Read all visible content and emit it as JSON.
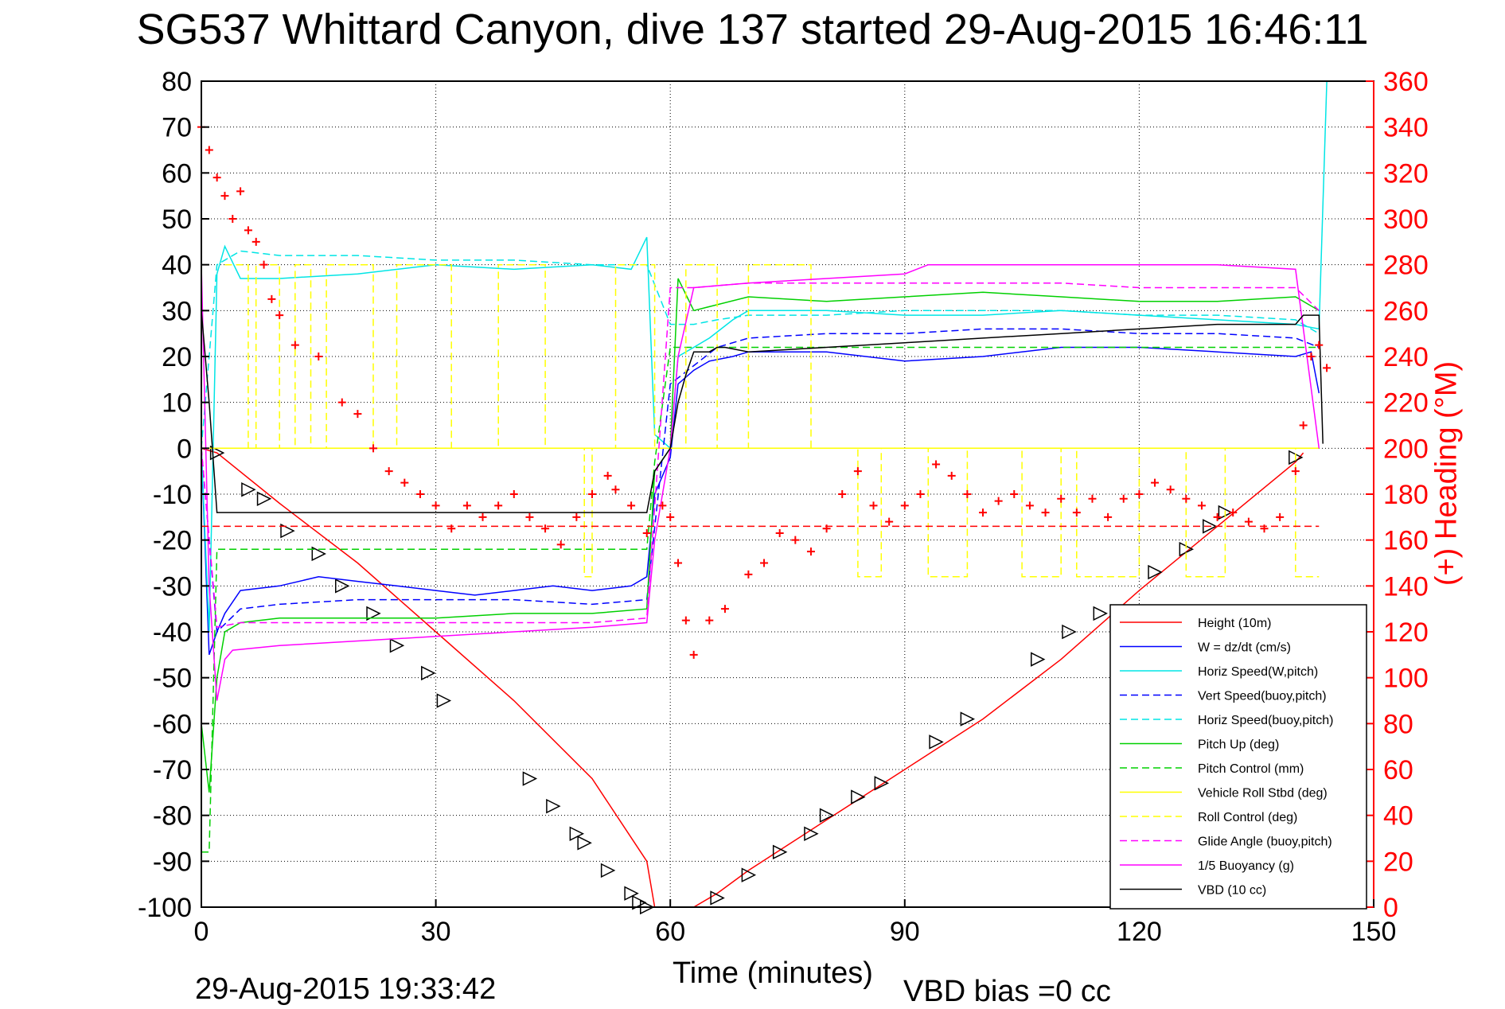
{
  "title": "SG537 Whittard Canyon, dive 137 started 29-Aug-2015 16:46:11",
  "xlabel": "Time (minutes)",
  "footer_timestamp": "29-Aug-2015 19:33:42",
  "vbd_bias": "VBD bias =0 cc",
  "y2label": "(+) Heading (°M)",
  "colors": {
    "height": "#ff0000",
    "w": "#0000ff",
    "horiz": "#00e5e5",
    "pitch": "#00d000",
    "roll": "#ffff00",
    "glide": "#ff00ff",
    "vbd": "#000000",
    "heading": "#ff0000"
  },
  "chart_data": {
    "type": "line",
    "title": "SG537 Whittard Canyon, dive 137 started 29-Aug-2015 16:46:11",
    "xlabel": "Time (minutes)",
    "ylabel": "",
    "y2label": "(+) Heading (°M)",
    "xlim": [
      0,
      150
    ],
    "ylim": [
      -100,
      80
    ],
    "y2lim": [
      0,
      360
    ],
    "xticks": [
      0,
      30,
      60,
      90,
      120,
      150
    ],
    "yticks": [
      -100,
      -90,
      -80,
      -70,
      -60,
      -50,
      -40,
      -30,
      -20,
      -10,
      0,
      10,
      20,
      30,
      40,
      50,
      60,
      70,
      80
    ],
    "y2ticks": [
      0,
      20,
      40,
      60,
      80,
      100,
      120,
      140,
      160,
      180,
      200,
      220,
      240,
      260,
      280,
      300,
      320,
      340,
      360
    ],
    "grid": true,
    "legend_position": "bottom-right",
    "series": [
      {
        "name": "Height (10m)",
        "color": "#ff0000",
        "dash": "solid",
        "x": [
          0,
          2,
          10,
          20,
          30,
          40,
          50,
          57,
          58,
          60,
          63,
          66,
          70,
          80,
          90,
          100,
          110,
          120,
          130,
          140,
          141
        ],
        "y": [
          0,
          -1,
          -12,
          -25,
          -40,
          -55,
          -72,
          -90,
          -100,
          -100,
          -100,
          -97,
          -92,
          -81,
          -70,
          -59,
          -46,
          -31,
          -17,
          -3,
          -1
        ],
        "markers_x": [
          2,
          6,
          8,
          11,
          15,
          18,
          22,
          25,
          29,
          31,
          42,
          45,
          48,
          49,
          52,
          55,
          56,
          57,
          66,
          70,
          74,
          78,
          80,
          84,
          87,
          94,
          98,
          107,
          111,
          115,
          122,
          126,
          129,
          131,
          140
        ],
        "markers_y": [
          -1,
          -9,
          -11,
          -18,
          -23,
          -30,
          -36,
          -43,
          -49,
          -55,
          -72,
          -78,
          -84,
          -86,
          -92,
          -97,
          -99,
          -100,
          -98,
          -93,
          -88,
          -84,
          -80,
          -76,
          -73,
          -64,
          -59,
          -46,
          -40,
          -36,
          -27,
          -22,
          -17,
          -14,
          -2
        ]
      },
      {
        "name": "W = dz/dt (cm/s)",
        "color": "#0000ff",
        "dash": "solid",
        "x": [
          0,
          1,
          2,
          3,
          5,
          10,
          15,
          20,
          25,
          30,
          35,
          40,
          45,
          50,
          55,
          57,
          58,
          60,
          61,
          63,
          65,
          68,
          70,
          80,
          90,
          100,
          110,
          120,
          130,
          140,
          142,
          143
        ],
        "y": [
          0,
          -45,
          -40,
          -36,
          -31,
          -30,
          -28,
          -29,
          -30,
          -31,
          -32,
          -31,
          -30,
          -31,
          -30,
          -28,
          -10,
          -2,
          14,
          17,
          19,
          20,
          21,
          21,
          19,
          20,
          22,
          22,
          21,
          20,
          21,
          12
        ]
      },
      {
        "name": "Horiz Speed(W,pitch)",
        "color": "#00e5e5",
        "dash": "solid",
        "x": [
          0,
          1,
          2,
          3,
          5,
          10,
          20,
          30,
          40,
          50,
          55,
          57,
          58,
          60,
          61,
          63,
          65,
          68,
          70,
          80,
          90,
          100,
          110,
          120,
          130,
          140,
          143,
          144
        ],
        "y": [
          0,
          -40,
          38,
          44,
          37,
          37,
          38,
          40,
          39,
          40,
          39,
          46,
          3,
          0,
          20,
          22,
          24,
          28,
          30,
          30,
          29,
          29,
          30,
          29,
          28,
          27,
          26,
          80
        ]
      },
      {
        "name": "Vert Speed(buoy,pitch)",
        "color": "#0000ff",
        "dash": "dashed",
        "x": [
          0,
          2,
          5,
          10,
          20,
          30,
          40,
          50,
          57,
          60,
          63,
          66,
          70,
          80,
          90,
          100,
          110,
          120,
          130,
          140,
          143
        ],
        "y": [
          0,
          -40,
          -35,
          -34,
          -33,
          -33,
          -33,
          -34,
          -33,
          14,
          18,
          22,
          24,
          25,
          25,
          26,
          26,
          25,
          25,
          24,
          22
        ]
      },
      {
        "name": "Horiz Speed(buoy,pitch)",
        "color": "#00e5e5",
        "dash": "dashed",
        "x": [
          0,
          2,
          5,
          10,
          20,
          30,
          40,
          50,
          57,
          60,
          63,
          66,
          70,
          80,
          90,
          100,
          110,
          120,
          130,
          140,
          143
        ],
        "y": [
          0,
          40,
          43,
          42,
          42,
          41,
          41,
          40,
          40,
          27,
          27,
          28,
          29,
          29,
          30,
          30,
          30,
          29,
          29,
          28,
          25
        ]
      },
      {
        "name": "Pitch Up (deg)",
        "color": "#00d000",
        "dash": "solid",
        "x": [
          0,
          1,
          2,
          3,
          5,
          10,
          20,
          30,
          40,
          50,
          57,
          58,
          60,
          61,
          63,
          70,
          80,
          90,
          100,
          110,
          120,
          130,
          140,
          143
        ],
        "y": [
          -60,
          -75,
          -50,
          -40,
          -38,
          -37,
          -37,
          -37,
          -36,
          -36,
          -35,
          -5,
          0,
          37,
          30,
          33,
          32,
          33,
          34,
          33,
          32,
          32,
          33,
          30
        ]
      },
      {
        "name": "Pitch Control (mm)",
        "color": "#00d000",
        "dash": "dashed",
        "x": [
          0,
          1,
          2,
          3,
          10,
          30,
          57,
          58,
          60,
          80,
          100,
          120,
          140,
          143
        ],
        "y": [
          -88,
          -88,
          -22,
          -22,
          -22,
          -22,
          -22,
          -3,
          22,
          22,
          22,
          22,
          22,
          22
        ]
      },
      {
        "name": "Vehicle Roll Stbd (deg)",
        "color": "#ffff00",
        "dash": "solid",
        "x": [
          0,
          30,
          60,
          90,
          120,
          143
        ],
        "y": [
          0,
          0,
          0,
          0,
          0,
          0
        ]
      },
      {
        "name": "Roll Control (deg)",
        "color": "#ffff00",
        "dash": "dashed",
        "x": [
          3,
          6,
          6,
          7,
          7,
          10,
          10,
          12,
          12,
          14,
          14,
          16,
          16,
          22,
          22,
          25,
          25,
          32,
          32,
          38,
          38,
          44,
          44,
          49,
          49,
          50,
          50,
          53,
          53,
          58,
          58,
          62,
          62,
          66,
          66,
          70,
          70,
          78,
          78,
          84,
          84,
          87,
          87,
          93,
          93,
          98,
          98,
          105,
          105,
          110,
          110,
          112,
          112,
          120,
          120,
          126,
          126,
          131,
          131,
          140,
          140,
          143
        ],
        "y": [
          40,
          40,
          0,
          0,
          40,
          40,
          0,
          0,
          40,
          40,
          0,
          0,
          40,
          40,
          0,
          0,
          40,
          40,
          0,
          0,
          40,
          40,
          0,
          0,
          -28,
          -28,
          0,
          0,
          40,
          40,
          0,
          0,
          40,
          40,
          0,
          0,
          40,
          40,
          0,
          0,
          -28,
          -28,
          0,
          0,
          -28,
          -28,
          0,
          0,
          -28,
          -28,
          0,
          0,
          -28,
          -28,
          0,
          0,
          -28,
          -28,
          0,
          0,
          -28,
          -28
        ]
      },
      {
        "name": "Glide Angle (buoy,pitch)",
        "color": "#ff00ff",
        "dash": "dashed",
        "x": [
          0,
          2,
          5,
          10,
          20,
          30,
          40,
          50,
          57,
          60,
          63,
          70,
          80,
          90,
          100,
          110,
          120,
          130,
          140,
          143
        ],
        "y": [
          0,
          -39,
          -38,
          -38,
          -38,
          -38,
          -38,
          -38,
          -37,
          35,
          35,
          36,
          36,
          36,
          36,
          36,
          35,
          35,
          35,
          30
        ]
      },
      {
        "name": "1/5 Buoyancy (g)",
        "color": "#ff00ff",
        "dash": "solid",
        "x": [
          0,
          1,
          2,
          3,
          4,
          10,
          20,
          30,
          40,
          50,
          57,
          58,
          60,
          61,
          63,
          70,
          80,
          90,
          93,
          100,
          110,
          120,
          130,
          140,
          143
        ],
        "y": [
          40,
          -30,
          -55,
          -46,
          -44,
          -43,
          -42,
          -41,
          -40,
          -39,
          -38,
          -20,
          0,
          20,
          35,
          36,
          37,
          38,
          40,
          40,
          40,
          40,
          40,
          39,
          0
        ]
      },
      {
        "name": "VBD (10 cc)",
        "color": "#000000",
        "dash": "solid",
        "x": [
          0,
          1,
          2,
          3,
          20,
          40,
          57,
          58,
          60,
          61,
          62,
          63,
          65,
          66,
          67,
          70,
          80,
          90,
          100,
          110,
          120,
          130,
          140,
          141,
          143,
          143.5
        ],
        "y": [
          30,
          10,
          -14,
          -14,
          -14,
          -14,
          -14,
          -5,
          0,
          10,
          16,
          21,
          21,
          22,
          22,
          21,
          22,
          23,
          24,
          25,
          26,
          27,
          27,
          29,
          29,
          1
        ]
      },
      {
        "name": "",
        "color": "#ff0000",
        "dash": "dashed",
        "axis": "right",
        "x": [
          0,
          143
        ],
        "y": [
          166,
          166
        ]
      },
      {
        "name": "",
        "color": "#ff0000",
        "marker": "+",
        "axis": "right",
        "x": [
          0,
          1,
          2,
          3,
          4,
          5,
          6,
          7,
          8,
          9,
          10,
          12,
          15,
          18,
          20,
          22,
          24,
          26,
          28,
          30,
          32,
          34,
          36,
          38,
          40,
          42,
          44,
          46,
          48,
          50,
          52,
          53,
          55,
          57,
          59,
          60,
          61,
          62,
          63,
          65,
          67,
          70,
          72,
          74,
          76,
          78,
          80,
          82,
          84,
          86,
          88,
          90,
          92,
          94,
          96,
          98,
          100,
          102,
          104,
          106,
          108,
          110,
          112,
          114,
          116,
          118,
          120,
          122,
          124,
          126,
          128,
          130,
          132,
          134,
          136,
          138,
          140,
          141,
          142,
          143,
          144
        ],
        "y": [
          340,
          330,
          318,
          310,
          300,
          312,
          295,
          290,
          280,
          265,
          258,
          245,
          240,
          220,
          215,
          200,
          190,
          185,
          180,
          175,
          165,
          175,
          170,
          175,
          180,
          170,
          165,
          158,
          170,
          180,
          188,
          182,
          175,
          163,
          175,
          170,
          150,
          125,
          110,
          125,
          130,
          145,
          150,
          163,
          160,
          155,
          165,
          180,
          190,
          175,
          168,
          175,
          180,
          193,
          188,
          180,
          172,
          177,
          180,
          175,
          172,
          178,
          172,
          178,
          170,
          178,
          180,
          185,
          182,
          178,
          175,
          170,
          172,
          168,
          165,
          170,
          190,
          210,
          240,
          245,
          235
        ]
      }
    ]
  }
}
